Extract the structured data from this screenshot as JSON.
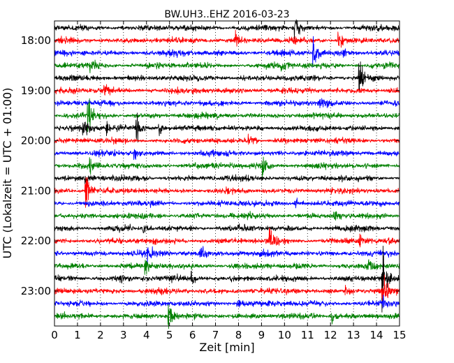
{
  "chart_data": {
    "type": "line",
    "title": "BW.UH3..EHZ 2016-03-23",
    "xlabel": "Zeit  [min]",
    "ylabel": "UTC (Lokalzeit = UTC + 01:00)",
    "xlim": [
      0,
      15
    ],
    "x_ticks": [
      0,
      1,
      2,
      3,
      4,
      5,
      6,
      7,
      8,
      9,
      10,
      11,
      12,
      13,
      14,
      15
    ],
    "grid": "vertical dotted",
    "trace_interval_min": 15,
    "y_ticks": [
      "18:00",
      "19:00",
      "20:00",
      "21:00",
      "22:00",
      "23:00"
    ],
    "color_cycle": [
      "#000000",
      "#ff0000",
      "#0000ff",
      "#008000"
    ],
    "traces": [
      {
        "start": "17:45",
        "color": "#000000",
        "events": [
          {
            "t": 10.5,
            "amp": 1.4
          }
        ]
      },
      {
        "start": "18:00",
        "color": "#ff0000",
        "events": [
          {
            "t": 12.4,
            "amp": 1.2
          },
          {
            "t": 7.9,
            "amp": 0.8
          }
        ]
      },
      {
        "start": "18:15",
        "color": "#0000ff",
        "events": [
          {
            "t": 11.3,
            "amp": 1.6
          },
          {
            "t": 12.6,
            "amp": 0.7
          }
        ]
      },
      {
        "start": "18:30",
        "color": "#008000",
        "events": [
          {
            "t": 1.6,
            "amp": 0.8
          },
          {
            "t": 9.9,
            "amp": 0.5
          }
        ]
      },
      {
        "start": "18:45",
        "color": "#000000",
        "events": [
          {
            "t": 13.3,
            "amp": 2.2
          }
        ]
      },
      {
        "start": "19:00",
        "color": "#ff0000",
        "events": [
          {
            "t": 2.2,
            "amp": 0.9
          }
        ]
      },
      {
        "start": "19:15",
        "color": "#0000ff",
        "events": [
          {
            "t": 11.6,
            "amp": 0.6
          }
        ]
      },
      {
        "start": "19:30",
        "color": "#008000",
        "events": [
          {
            "t": 1.5,
            "amp": 1.8
          }
        ]
      },
      {
        "start": "19:45",
        "color": "#000000",
        "events": [
          {
            "t": 1.3,
            "amp": 1.2
          },
          {
            "t": 2.3,
            "amp": 1.0
          },
          {
            "t": 3.6,
            "amp": 1.4
          },
          {
            "t": 4.6,
            "amp": 0.8
          }
        ]
      },
      {
        "start": "20:00",
        "color": "#ff0000",
        "events": [
          {
            "t": 8.5,
            "amp": 1.0
          }
        ]
      },
      {
        "start": "20:15",
        "color": "#0000ff",
        "events": [
          {
            "t": 3.5,
            "amp": 0.6
          }
        ]
      },
      {
        "start": "20:30",
        "color": "#008000",
        "events": [
          {
            "t": 9.1,
            "amp": 1.2
          },
          {
            "t": 1.6,
            "amp": 0.7
          }
        ]
      },
      {
        "start": "20:45",
        "color": "#000000",
        "events": [
          {
            "t": 1.4,
            "amp": 0.6
          }
        ]
      },
      {
        "start": "21:00",
        "color": "#ff0000",
        "events": [
          {
            "t": 1.4,
            "amp": 2.0
          }
        ]
      },
      {
        "start": "21:15",
        "color": "#0000ff",
        "events": [
          {
            "t": 10.5,
            "amp": 0.5
          }
        ]
      },
      {
        "start": "21:30",
        "color": "#008000",
        "events": [
          {
            "t": 12.2,
            "amp": 0.5
          }
        ]
      },
      {
        "start": "21:45",
        "color": "#000000",
        "events": [
          {
            "t": 3.9,
            "amp": 0.6
          }
        ]
      },
      {
        "start": "22:00",
        "color": "#ff0000",
        "events": [
          {
            "t": 9.4,
            "amp": 1.3
          },
          {
            "t": 13.3,
            "amp": 0.6
          }
        ]
      },
      {
        "start": "22:15",
        "color": "#0000ff",
        "events": [
          {
            "t": 4.1,
            "amp": 0.9
          },
          {
            "t": 6.4,
            "amp": 0.7
          }
        ]
      },
      {
        "start": "22:30",
        "color": "#008000",
        "events": [
          {
            "t": 4.0,
            "amp": 0.6
          },
          {
            "t": 13.6,
            "amp": 0.5
          }
        ]
      },
      {
        "start": "22:45",
        "color": "#000000",
        "events": [
          {
            "t": 14.3,
            "amp": 3.2
          },
          {
            "t": 2.9,
            "amp": 0.7
          },
          {
            "t": 6.0,
            "amp": 0.6
          }
        ]
      },
      {
        "start": "23:00",
        "color": "#ff0000",
        "events": [
          {
            "t": 14.3,
            "amp": 2.5
          },
          {
            "t": 12.7,
            "amp": 0.7
          }
        ]
      },
      {
        "start": "23:15",
        "color": "#0000ff",
        "events": [
          {
            "t": 8.0,
            "amp": 0.6
          },
          {
            "t": 14.3,
            "amp": 0.8
          }
        ]
      },
      {
        "start": "23:30",
        "color": "#008000",
        "events": [
          {
            "t": 5.0,
            "amp": 1.2
          },
          {
            "t": 12.1,
            "amp": 0.8
          }
        ]
      }
    ]
  }
}
